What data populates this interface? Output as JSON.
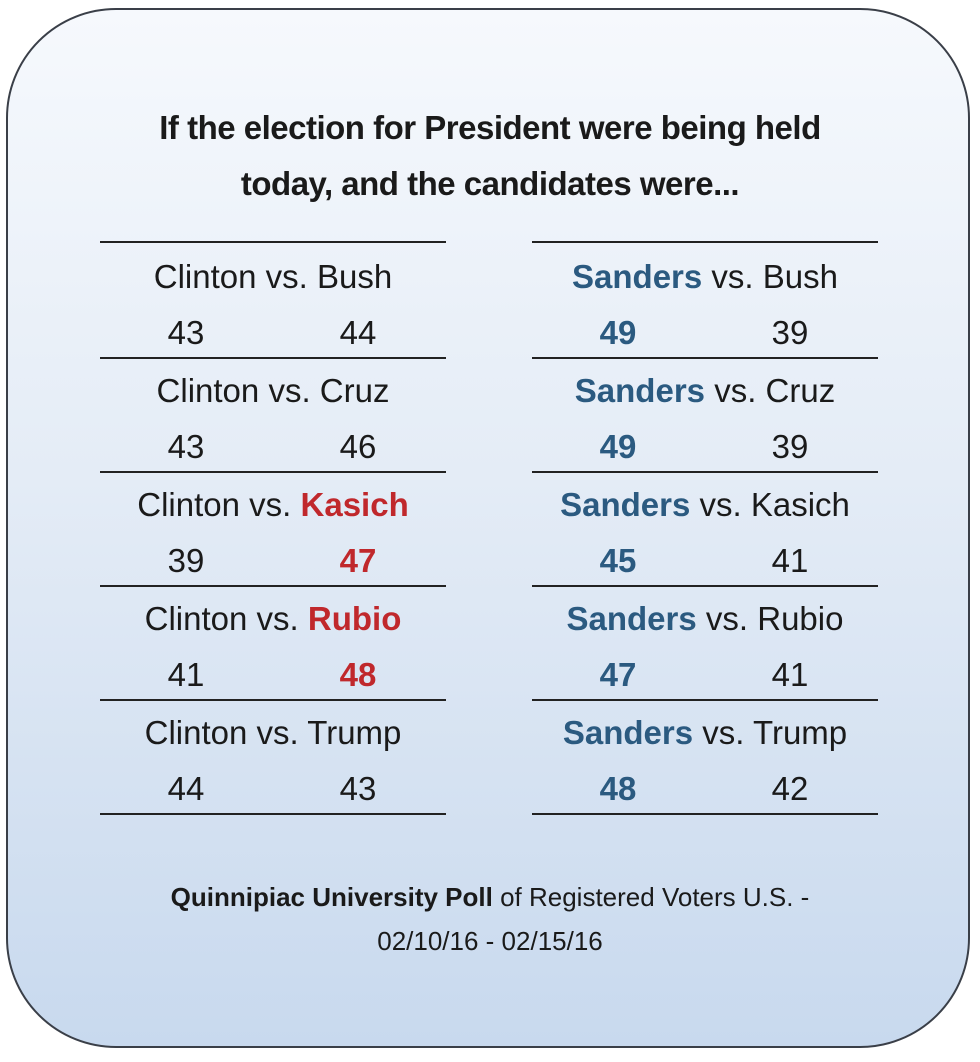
{
  "title_line1": "If the election for President were being held",
  "title_line2": "today, and the candidates were...",
  "colors": {
    "highlight_red": "#c0282c",
    "highlight_blue": "#2b5a80"
  },
  "chart_data": {
    "type": "table",
    "tables": [
      {
        "rows": [
          {
            "a": "Clinton",
            "vs": "vs.",
            "b": "Bush",
            "a_val": "43",
            "b_val": "44",
            "highlight": "none"
          },
          {
            "a": "Clinton",
            "vs": "vs.",
            "b": "Cruz",
            "a_val": "43",
            "b_val": "46",
            "highlight": "none"
          },
          {
            "a": "Clinton",
            "vs": "vs.",
            "b": "Kasich",
            "a_val": "39",
            "b_val": "47",
            "highlight": "b"
          },
          {
            "a": "Clinton",
            "vs": "vs.",
            "b": "Rubio",
            "a_val": "41",
            "b_val": "48",
            "highlight": "b"
          },
          {
            "a": "Clinton",
            "vs": "vs.",
            "b": "Trump",
            "a_val": "44",
            "b_val": "43",
            "highlight": "none"
          }
        ]
      },
      {
        "rows": [
          {
            "a": "Sanders",
            "vs": "vs.",
            "b": "Bush",
            "a_val": "49",
            "b_val": "39",
            "highlight": "a"
          },
          {
            "a": "Sanders",
            "vs": "vs.",
            "b": "Cruz",
            "a_val": "49",
            "b_val": "39",
            "highlight": "a"
          },
          {
            "a": "Sanders",
            "vs": "vs.",
            "b": "Kasich",
            "a_val": "45",
            "b_val": "41",
            "highlight": "a"
          },
          {
            "a": "Sanders",
            "vs": "vs.",
            "b": "Rubio",
            "a_val": "47",
            "b_val": "41",
            "highlight": "a"
          },
          {
            "a": "Sanders",
            "vs": "vs.",
            "b": "Trump",
            "a_val": "48",
            "b_val": "42",
            "highlight": "a"
          }
        ]
      }
    ]
  },
  "source": {
    "bold": "Quinnipiac University Poll",
    "rest": " of Registered Voters U.S. -",
    "dates": "02/10/16 - 02/15/16"
  }
}
